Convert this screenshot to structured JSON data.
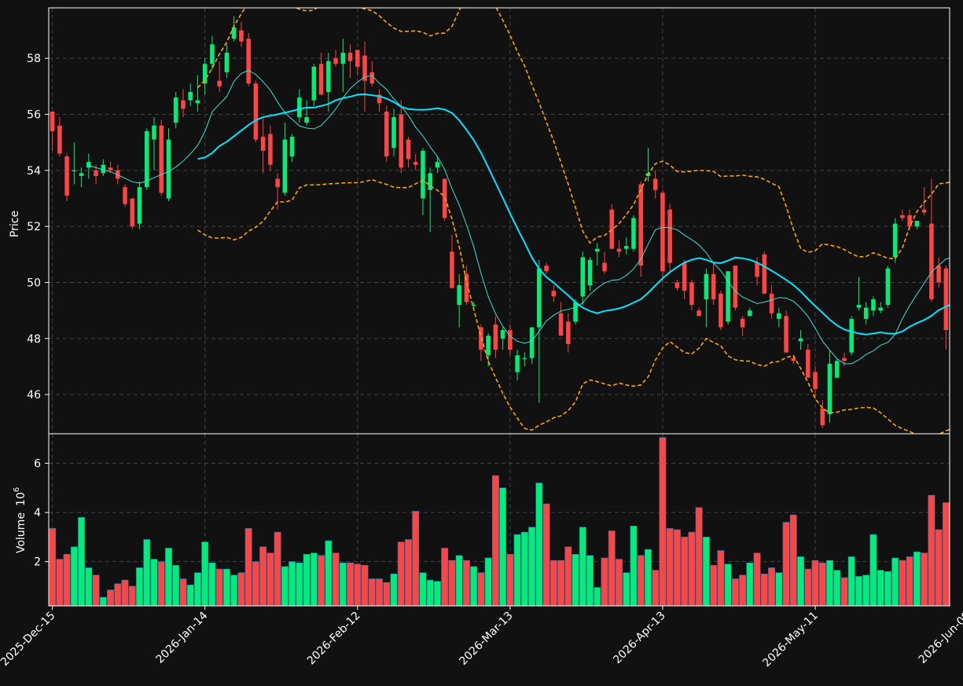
{
  "chart_data": {
    "type": "candlestick",
    "title": "",
    "colors": {
      "background": "#111111",
      "up": "#00ee77",
      "down": "#ff4444",
      "volume_edge": "#1f77b4",
      "ma_fast": "#40e0d0",
      "ma_slow": "#00e5ff",
      "bollinger": "#ffa500",
      "grid": "#444444",
      "axis": "#ffffff"
    },
    "price_panel": {
      "ylabel": "Price",
      "ylim": [
        44.6,
        59.8
      ],
      "yticks": [
        46,
        48,
        50,
        52,
        54,
        56,
        58
      ]
    },
    "volume_panel": {
      "ylabel": "Volume",
      "ylabel_unit": "10",
      "ylabel_exp": "6",
      "ylim": [
        0.2,
        7.2
      ],
      "yticks": [
        2,
        4,
        6
      ]
    },
    "xticks": [
      {
        "i": 0,
        "label": "2025-Dec-15"
      },
      {
        "i": 21,
        "label": "2026-Jan-14"
      },
      {
        "i": 42,
        "label": "2026-Feb-12"
      },
      {
        "i": 63,
        "label": "2026-Mar-13"
      },
      {
        "i": 84,
        "label": "2026-Apr-13"
      },
      {
        "i": 105,
        "label": "2026-May-11"
      },
      {
        "i": 126,
        "label": "2026-Jun-09"
      }
    ],
    "ohlcv": [
      [
        56.1,
        56.1,
        54.7,
        55.4,
        3.35
      ],
      [
        55.6,
        55.9,
        54.5,
        54.6,
        2.1
      ],
      [
        54.5,
        54.6,
        52.9,
        53.1,
        2.3
      ],
      [
        54.0,
        55.0,
        53.5,
        54.0,
        2.6
      ],
      [
        53.8,
        54.1,
        53.4,
        53.9,
        3.8
      ],
      [
        54.1,
        54.6,
        53.7,
        54.3,
        1.75
      ],
      [
        54.0,
        54.2,
        53.5,
        53.8,
        1.45
      ],
      [
        53.9,
        54.4,
        53.8,
        54.2,
        0.55
      ],
      [
        54.1,
        54.3,
        53.9,
        54.0,
        0.85
      ],
      [
        54.0,
        54.2,
        53.5,
        53.7,
        1.1
      ],
      [
        53.4,
        53.5,
        52.7,
        52.8,
        1.25
      ],
      [
        53.0,
        53.0,
        51.9,
        52.0,
        1.0
      ],
      [
        52.1,
        53.6,
        51.9,
        53.4,
        1.75
      ],
      [
        53.4,
        55.5,
        53.3,
        55.4,
        2.9
      ],
      [
        55.1,
        55.9,
        54.0,
        55.6,
        2.1
      ],
      [
        55.6,
        55.8,
        53.1,
        53.2,
        2.0
      ],
      [
        53.0,
        55.5,
        52.9,
        55.1,
        2.55
      ],
      [
        55.7,
        56.8,
        55.5,
        56.6,
        1.85
      ],
      [
        56.5,
        56.9,
        55.9,
        56.2,
        1.3
      ],
      [
        56.5,
        57.1,
        56.3,
        56.8,
        1.05
      ],
      [
        56.4,
        57.4,
        56.1,
        56.5,
        1.55
      ],
      [
        57.1,
        58.0,
        56.7,
        57.8,
        2.8
      ],
      [
        57.8,
        58.8,
        57.6,
        58.5,
        1.95
      ],
      [
        57.2,
        57.9,
        56.8,
        57.0,
        1.7
      ],
      [
        57.5,
        58.5,
        57.3,
        58.2,
        1.7
      ],
      [
        58.7,
        59.5,
        58.6,
        59.1,
        1.45
      ],
      [
        59.0,
        59.3,
        58.4,
        58.6,
        1.55
      ],
      [
        58.7,
        58.9,
        57.0,
        57.1,
        3.35
      ],
      [
        57.1,
        57.2,
        55.0,
        55.1,
        2.0
      ],
      [
        55.2,
        55.9,
        53.9,
        54.7,
        2.6
      ],
      [
        55.3,
        55.6,
        54.0,
        54.2,
        2.35
      ],
      [
        53.7,
        53.9,
        52.6,
        53.4,
        3.2
      ],
      [
        53.2,
        55.7,
        53.1,
        55.1,
        1.8
      ],
      [
        54.5,
        55.3,
        54.3,
        55.2,
        2.0
      ],
      [
        55.9,
        56.9,
        55.7,
        56.6,
        1.95
      ],
      [
        55.7,
        56.5,
        55.6,
        55.9,
        2.3
      ],
      [
        56.5,
        57.8,
        56.3,
        57.7,
        2.35
      ],
      [
        57.8,
        58.2,
        56.9,
        56.7,
        2.25
      ],
      [
        56.8,
        58.2,
        56.1,
        57.9,
        2.85
      ],
      [
        58.0,
        58.3,
        57.7,
        57.8,
        2.35
      ],
      [
        57.8,
        58.7,
        56.8,
        58.2,
        1.95
      ],
      [
        58.2,
        58.5,
        57.3,
        57.9,
        1.95
      ],
      [
        58.3,
        58.3,
        57.4,
        57.7,
        1.9
      ],
      [
        58.1,
        58.6,
        56.1,
        57.2,
        1.85
      ],
      [
        57.5,
        57.9,
        57.0,
        57.1,
        1.3
      ],
      [
        56.7,
        56.9,
        56.1,
        56.4,
        1.3
      ],
      [
        56.1,
        56.3,
        54.3,
        54.5,
        1.15
      ],
      [
        54.8,
        56.2,
        54.5,
        55.9,
        1.5
      ],
      [
        56.0,
        56.5,
        53.9,
        54.1,
        2.8
      ],
      [
        55.1,
        55.2,
        54.1,
        54.4,
        2.9
      ],
      [
        54.3,
        54.6,
        54.0,
        54.2,
        4.05
      ],
      [
        53.0,
        54.8,
        52.4,
        54.7,
        1.55
      ],
      [
        53.3,
        54.1,
        51.8,
        53.9,
        1.25
      ],
      [
        54.1,
        54.5,
        53.9,
        54.3,
        1.2
      ],
      [
        53.7,
        53.7,
        52.2,
        52.3,
        2.55
      ],
      [
        51.1,
        51.7,
        49.8,
        49.8,
        2.05
      ],
      [
        49.2,
        50.3,
        48.4,
        49.9,
        2.25
      ],
      [
        50.3,
        50.6,
        49.2,
        49.3,
        2.05
      ],
      [
        49.2,
        49.3,
        49.0,
        49.2,
        1.8
      ],
      [
        48.4,
        48.5,
        47.2,
        47.6,
        1.55
      ],
      [
        47.4,
        48.2,
        47.0,
        48.1,
        2.15
      ],
      [
        48.5,
        48.8,
        47.3,
        47.6,
        5.5
      ],
      [
        48.0,
        48.4,
        47.6,
        48.3,
        5.0
      ],
      [
        48.3,
        48.5,
        47.4,
        47.6,
        2.3
      ],
      [
        46.8,
        47.6,
        46.5,
        47.4,
        3.1
      ],
      [
        47.3,
        47.5,
        47.0,
        47.3,
        3.2
      ],
      [
        47.3,
        48.3,
        47.1,
        48.4,
        3.4
      ],
      [
        48.4,
        50.8,
        45.7,
        50.5,
        5.2
      ],
      [
        50.6,
        50.7,
        50.3,
        50.4,
        4.35
      ],
      [
        49.7,
        49.9,
        49.3,
        49.5,
        2.05
      ],
      [
        48.9,
        49.3,
        48.1,
        48.1,
        2.05
      ],
      [
        48.6,
        48.9,
        47.5,
        47.8,
        2.6
      ],
      [
        48.6,
        49.4,
        48.5,
        49.3,
        2.3
      ],
      [
        49.5,
        51.1,
        49.2,
        50.9,
        3.4
      ],
      [
        49.9,
        50.9,
        49.7,
        50.8,
        2.25
      ],
      [
        51.1,
        51.4,
        50.6,
        51.2,
        0.95
      ],
      [
        50.7,
        51.1,
        50.3,
        50.4,
        2.15
      ],
      [
        52.6,
        52.8,
        51.4,
        51.2,
        3.25
      ],
      [
        51.2,
        51.5,
        50.9,
        51.1,
        2.1
      ],
      [
        51.2,
        51.6,
        51.0,
        51.3,
        1.55
      ],
      [
        51.2,
        52.4,
        51.1,
        52.3,
        3.45
      ],
      [
        53.5,
        53.6,
        50.2,
        50.6,
        2.25
      ],
      [
        53.8,
        54.8,
        53.6,
        53.9,
        2.5
      ],
      [
        53.7,
        54.0,
        53.0,
        53.3,
        1.65
      ],
      [
        53.2,
        53.3,
        50.0,
        50.4,
        7.05
      ],
      [
        52.6,
        52.8,
        50.3,
        50.7,
        3.35
      ],
      [
        50.0,
        50.1,
        49.7,
        49.8,
        3.3
      ],
      [
        50.7,
        50.8,
        49.4,
        49.7,
        3.0
      ],
      [
        50.0,
        50.1,
        49.0,
        49.2,
        3.2
      ],
      [
        49.0,
        49.1,
        48.8,
        48.8,
        4.2
      ],
      [
        49.4,
        50.5,
        48.4,
        50.3,
        3.0
      ],
      [
        50.3,
        50.7,
        49.2,
        49.4,
        1.85
      ],
      [
        49.6,
        49.7,
        48.3,
        48.4,
        2.45
      ],
      [
        48.6,
        50.4,
        48.5,
        50.4,
        1.9
      ],
      [
        50.6,
        50.6,
        49.0,
        49.1,
        1.3
      ],
      [
        48.7,
        48.8,
        48.1,
        48.4,
        1.45
      ],
      [
        48.8,
        49.1,
        48.8,
        49.0,
        1.95
      ],
      [
        50.7,
        50.9,
        49.9,
        50.2,
        2.35
      ],
      [
        51.0,
        51.1,
        49.6,
        49.6,
        1.5
      ],
      [
        49.6,
        49.9,
        48.7,
        48.9,
        1.75
      ],
      [
        48.7,
        49.1,
        48.4,
        48.9,
        1.55
      ],
      [
        48.8,
        49.0,
        47.6,
        47.5,
        3.6
      ],
      [
        47.3,
        47.4,
        47.1,
        47.2,
        3.9
      ],
      [
        47.9,
        48.3,
        47.6,
        48.0,
        2.2
      ],
      [
        47.6,
        47.8,
        46.7,
        46.6,
        1.7
      ],
      [
        46.8,
        47.0,
        45.9,
        46.2,
        2.05
      ],
      [
        45.5,
        45.8,
        44.8,
        44.9,
        1.95
      ],
      [
        45.3,
        47.6,
        45.0,
        47.1,
        2.05
      ],
      [
        46.6,
        47.3,
        46.6,
        47.2,
        1.65
      ],
      [
        47.3,
        47.5,
        47.0,
        47.2,
        1.35
      ],
      [
        47.5,
        48.8,
        47.4,
        48.7,
        2.2
      ],
      [
        49.1,
        50.2,
        49.0,
        49.2,
        1.4
      ],
      [
        48.7,
        49.3,
        48.5,
        49.1,
        1.45
      ],
      [
        49.0,
        49.5,
        48.8,
        49.4,
        3.1
      ],
      [
        49.0,
        49.3,
        48.9,
        49.1,
        1.65
      ],
      [
        49.2,
        50.6,
        49.1,
        50.5,
        1.6
      ],
      [
        50.9,
        52.3,
        50.7,
        52.1,
        2.15
      ],
      [
        52.4,
        52.6,
        52.2,
        52.3,
        2.05
      ],
      [
        52.4,
        52.6,
        51.9,
        52.0,
        2.2
      ],
      [
        52.0,
        52.2,
        51.9,
        52.2,
        2.4
      ],
      [
        52.6,
        53.4,
        52.4,
        52.5,
        2.35
      ],
      [
        52.1,
        53.7,
        49.3,
        49.4,
        4.7
      ],
      [
        50.6,
        50.9,
        49.8,
        50.0,
        3.3
      ],
      [
        50.5,
        50.6,
        47.6,
        48.3,
        4.4
      ]
    ],
    "ma_fast": [
      null,
      null,
      null,
      null,
      null,
      54.17,
      54.1,
      54.02,
      53.95,
      53.84,
      53.72,
      53.59,
      53.55,
      53.62,
      53.74,
      53.85,
      53.96,
      54.12,
      54.33,
      54.59,
      54.89,
      55.39,
      56.09,
      56.37,
      56.63,
      57.18,
      57.46,
      57.57,
      57.42,
      57.17,
      56.86,
      56.44,
      56.06,
      55.82,
      55.59,
      55.51,
      55.48,
      55.6,
      55.88,
      56.19,
      56.59,
      56.92,
      57.15,
      57.34,
      57.38,
      57.11,
      56.89,
      56.55,
      56.29,
      55.96,
      55.54,
      55.23,
      54.84,
      54.49,
      54.03,
      53.35,
      52.77,
      52.06,
      51.28,
      50.32,
      49.49,
      48.88,
      48.44,
      48.08,
      47.9,
      47.83,
      47.91,
      48.26,
      48.63,
      48.83,
      48.98,
      49.04,
      49.11,
      49.27,
      49.58,
      49.8,
      49.98,
      50.08,
      50.1,
      50.25,
      50.48,
      50.84,
      51.36,
      51.88,
      51.97,
      51.95,
      51.88,
      51.69,
      51.53,
      51.34,
      51.06,
      50.69,
      50.42,
      50.04,
      49.69,
      49.48,
      49.36,
      49.25,
      49.3,
      49.37,
      49.46,
      49.44,
      49.33,
      49.09,
      48.79,
      48.37,
      47.91,
      47.58,
      47.28,
      47.1,
      47.1,
      47.24,
      47.43,
      47.56,
      47.76,
      47.86,
      48.15,
      48.71,
      49.18,
      49.58,
      49.97,
      50.37,
      50.61,
      50.84,
      50.89,
      50.95,
      50.83
    ],
    "ma_slow": [
      null,
      null,
      null,
      null,
      null,
      null,
      null,
      null,
      null,
      null,
      null,
      null,
      null,
      null,
      null,
      null,
      null,
      null,
      null,
      null,
      54.41,
      54.46,
      54.62,
      54.87,
      55.02,
      55.22,
      55.42,
      55.62,
      55.79,
      55.9,
      55.95,
      56.0,
      56.06,
      56.12,
      56.19,
      56.24,
      56.24,
      56.3,
      56.37,
      56.5,
      56.58,
      56.63,
      56.7,
      56.72,
      56.68,
      56.65,
      56.56,
      56.44,
      56.27,
      56.19,
      56.17,
      56.16,
      56.18,
      56.22,
      56.17,
      56.05,
      55.79,
      55.45,
      55.08,
      54.63,
      54.11,
      53.56,
      53.02,
      52.46,
      51.93,
      51.42,
      50.89,
      50.49,
      50.19,
      49.99,
      49.76,
      49.54,
      49.29,
      49.1,
      48.98,
      48.9,
      48.98,
      49.02,
      49.07,
      49.16,
      49.28,
      49.4,
      49.63,
      49.89,
      50.15,
      50.37,
      50.55,
      50.71,
      50.81,
      50.87,
      50.81,
      50.71,
      50.69,
      50.78,
      50.89,
      50.86,
      50.81,
      50.71,
      50.57,
      50.42,
      50.26,
      50.09,
      49.91,
      49.68,
      49.41,
      49.16,
      48.92,
      48.67,
      48.47,
      48.32,
      48.24,
      48.18,
      48.14,
      48.18,
      48.22,
      48.18,
      48.17,
      48.25,
      48.42,
      48.55,
      48.66,
      48.81,
      49.01,
      49.14,
      49.25,
      49.28,
      49.26
    ],
    "bb_upper": [
      null,
      null,
      null,
      null,
      null,
      null,
      null,
      null,
      null,
      null,
      null,
      null,
      null,
      null,
      null,
      null,
      null,
      null,
      null,
      null,
      56.95,
      57.22,
      57.65,
      58.16,
      58.57,
      59.15,
      59.59,
      60.0,
      60.26,
      60.43,
      60.32,
      60.12,
      59.95,
      59.86,
      59.75,
      59.69,
      59.72,
      59.93,
      60.01,
      60.05,
      59.97,
      59.93,
      59.85,
      59.76,
      59.7,
      59.52,
      59.28,
      59.08,
      58.96,
      58.96,
      58.98,
      58.93,
      58.8,
      58.89,
      58.9,
      59.14,
      59.71,
      60.34,
      60.83,
      61.19,
      60.51,
      59.85,
      59.36,
      58.82,
      58.24,
      57.73,
      57.05,
      56.41,
      55.72,
      55.05,
      54.28,
      53.51,
      52.68,
      51.83,
      51.41,
      51.62,
      51.68,
      51.88,
      52.1,
      52.42,
      52.78,
      53.31,
      53.86,
      54.24,
      54.33,
      54.19,
      53.96,
      53.95,
      53.97,
      54.0,
      53.99,
      53.96,
      53.78,
      53.8,
      53.8,
      53.83,
      53.79,
      53.77,
      53.68,
      53.54,
      53.42,
      52.72,
      51.89,
      51.21,
      51.08,
      51.13,
      51.38,
      51.33,
      51.28,
      51.17,
      51.03,
      50.91,
      50.93,
      51.06,
      50.97,
      50.86,
      50.85,
      51.23,
      51.99,
      52.53,
      52.86,
      53.15,
      53.52,
      53.55,
      53.61,
      53.62,
      53.62
    ],
    "bb_lower": [
      null,
      null,
      null,
      null,
      null,
      null,
      null,
      null,
      null,
      null,
      null,
      null,
      null,
      null,
      null,
      null,
      null,
      null,
      null,
      null,
      51.87,
      51.7,
      51.59,
      51.58,
      51.61,
      51.52,
      51.61,
      51.83,
      51.97,
      52.18,
      52.55,
      52.88,
      52.87,
      52.94,
      53.38,
      53.48,
      53.48,
      53.49,
      53.52,
      53.53,
      53.55,
      53.56,
      53.56,
      53.6,
      53.67,
      53.58,
      53.5,
      53.4,
      53.38,
      53.39,
      53.52,
      53.65,
      53.45,
      53.29,
      53.06,
      52.26,
      51.27,
      50.05,
      49.04,
      48.07,
      47.19,
      46.6,
      46.04,
      45.55,
      45.16,
      44.79,
      44.73,
      44.91,
      45.02,
      45.17,
      45.24,
      45.43,
      45.74,
      46.38,
      46.52,
      46.46,
      46.38,
      46.31,
      46.41,
      46.34,
      46.3,
      46.34,
      46.63,
      47.23,
      47.66,
      47.89,
      47.69,
      47.5,
      47.45,
      47.65,
      48.0,
      47.86,
      47.74,
      47.38,
      47.24,
      47.2,
      47.19,
      47.07,
      47.01,
      47.15,
      47.18,
      47.32,
      47.39,
      46.93,
      46.44,
      45.85,
      45.51,
      45.35,
      45.37,
      45.45,
      45.47,
      45.52,
      45.54,
      45.52,
      45.35,
      45.13,
      44.9,
      44.78,
      44.68,
      44.56,
      44.54,
      44.52,
      44.58,
      44.71,
      44.79,
      44.78,
      44.8
    ]
  }
}
